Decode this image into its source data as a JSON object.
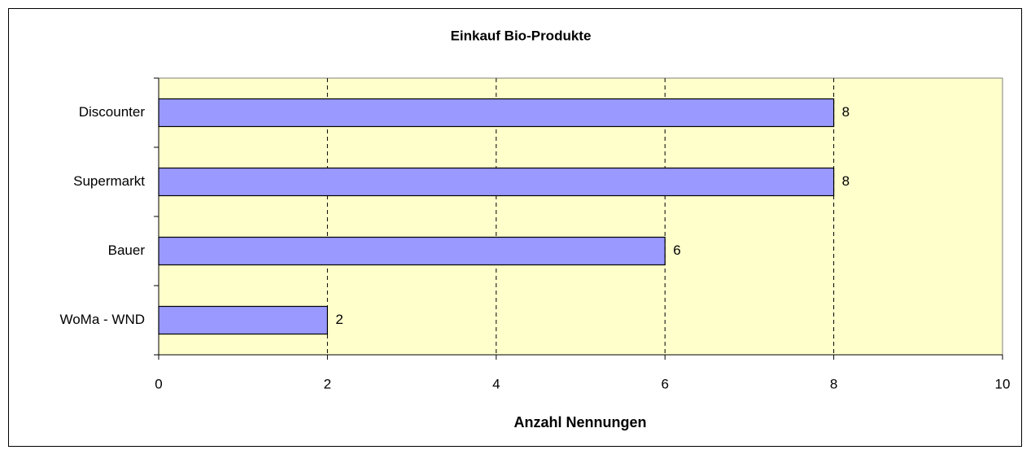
{
  "chart_data": {
    "type": "barh",
    "title": "Einkauf Bio-Produkte",
    "xlabel": "Anzahl Nennungen",
    "categories": [
      "Discounter",
      "Supermarkt",
      "Bauer",
      "WoMa - WND"
    ],
    "values": [
      8,
      8,
      6,
      2
    ],
    "color": "#9999ff",
    "background": "#ffffcc",
    "xlim": [
      0,
      10
    ],
    "xticks": [
      0,
      2,
      4,
      6,
      8,
      10
    ],
    "grid": true
  }
}
